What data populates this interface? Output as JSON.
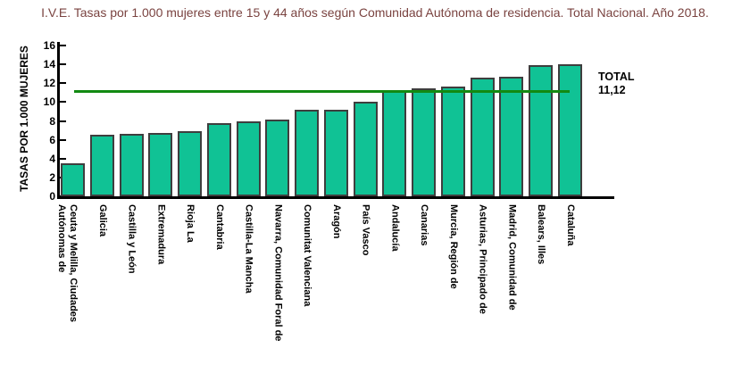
{
  "page": {
    "background": "#ffffff"
  },
  "chart_data": {
    "type": "bar",
    "title": "I.V.E. Tasas por 1.000 mujeres entre 15 y 44 años según Comunidad Autónoma de residencia. Total Nacional. Año 2018.",
    "ylabel": "TASAS POR 1.000 MUJERES",
    "xlabel": "",
    "ylim": [
      0,
      16
    ],
    "yticks": [
      0,
      2,
      4,
      6,
      8,
      10,
      12,
      14,
      16
    ],
    "grid": false,
    "legend_position": "none",
    "categories": [
      "Ceuta y Melilla, Ciudades Autónomas de",
      "Galicia",
      "Castilla y León",
      "Extremadura",
      "Rioja La",
      "Cantabria",
      "Castilla-La Mancha",
      "Navarra, Comunidad Foral de",
      "Comunitat Valenciana",
      "Aragón",
      "País Vasco",
      "Andalucía",
      "Canarias",
      "Murcia, Región de",
      "Asturias, Principado de",
      "Madrid, Comunidad de",
      "Balears, Illes",
      "Cataluña"
    ],
    "values": [
      3.5,
      6.5,
      6.6,
      6.7,
      6.9,
      7.8,
      8.0,
      8.1,
      9.2,
      9.2,
      10.0,
      11.2,
      11.5,
      11.6,
      12.6,
      12.7,
      13.9,
      14.0
    ],
    "reference_line": {
      "value": 11.12,
      "label": "TOTAL",
      "value_label": "11,12",
      "color": "#128a12"
    },
    "colors": {
      "bar_fill": "#10c295",
      "bar_border": "#3e3e3e",
      "axis": "#000000",
      "title": "#7a4340",
      "text": "#000000"
    }
  }
}
